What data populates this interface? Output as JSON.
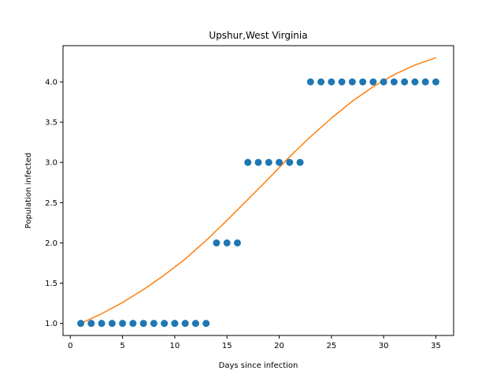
{
  "chart_data": {
    "type": "scatter",
    "title": "Upshur,West Virginia",
    "xlabel": "Days since infection",
    "ylabel": "Population infected",
    "xlim": [
      -0.7,
      36.7
    ],
    "ylim": [
      0.85,
      4.45
    ],
    "xticks": [
      0,
      5,
      10,
      15,
      20,
      25,
      30,
      35
    ],
    "xtick_labels": [
      "0",
      "5",
      "10",
      "15",
      "20",
      "25",
      "30",
      "35"
    ],
    "yticks": [
      1.0,
      1.5,
      2.0,
      2.5,
      3.0,
      3.5,
      4.0
    ],
    "ytick_labels": [
      "1.0",
      "1.5",
      "2.0",
      "2.5",
      "3.0",
      "3.5",
      "4.0"
    ],
    "grid": false,
    "series": [
      {
        "kind": "scatter",
        "color": "#1f77b4",
        "x": [
          1,
          2,
          3,
          4,
          5,
          6,
          7,
          8,
          9,
          10,
          11,
          12,
          13,
          14,
          15,
          16,
          17,
          18,
          19,
          20,
          21,
          22,
          23,
          24,
          25,
          26,
          27,
          28,
          29,
          30,
          31,
          32,
          33,
          34,
          35
        ],
        "y": [
          1,
          1,
          1,
          1,
          1,
          1,
          1,
          1,
          1,
          1,
          1,
          1,
          1,
          2,
          2,
          2,
          3,
          3,
          3,
          3,
          3,
          3,
          4,
          4,
          4,
          4,
          4,
          4,
          4,
          4,
          4,
          4,
          4,
          4,
          4
        ]
      },
      {
        "kind": "line",
        "color": "#ff7f0e",
        "x": [
          1,
          3,
          5,
          7,
          9,
          11,
          13,
          15,
          17,
          19,
          21,
          23,
          25,
          27,
          29,
          31,
          33,
          35
        ],
        "y": [
          1.0,
          1.12,
          1.26,
          1.42,
          1.6,
          1.8,
          2.03,
          2.28,
          2.54,
          2.8,
          3.07,
          3.32,
          3.55,
          3.76,
          3.94,
          4.09,
          4.21,
          4.3
        ]
      }
    ]
  }
}
